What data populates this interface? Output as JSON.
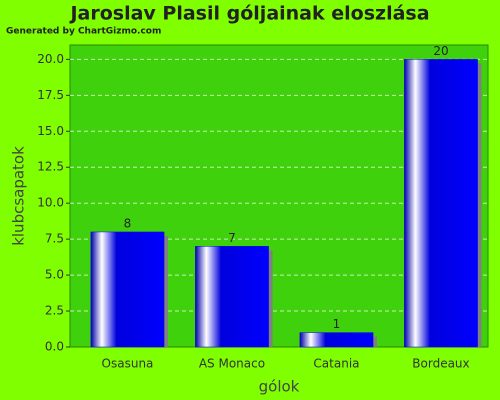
{
  "chart_data": {
    "type": "bar",
    "title": "Jaroslav Plasil góljainak eloszlása",
    "subtitle": "Generated by ChartGizmo.com",
    "x_label": "gólok",
    "y_label": "klubcsapatok",
    "categories": [
      "Osasuna",
      "AS Monaco",
      "Catania",
      "Bordeaux"
    ],
    "values": [
      8,
      7,
      1,
      20
    ],
    "color": "#0000ee",
    "ylim": [
      0,
      21
    ],
    "yticks": [
      {
        "value": 0,
        "label": "0.0"
      },
      2.5,
      {
        "value": 5,
        "label": "5.0"
      },
      7.5,
      {
        "value": 10,
        "label": "10.0"
      },
      12.5,
      {
        "value": 15,
        "label": "15.0"
      },
      17.5,
      {
        "value": 20,
        "label": "20.0"
      }
    ],
    "grid": true
  }
}
